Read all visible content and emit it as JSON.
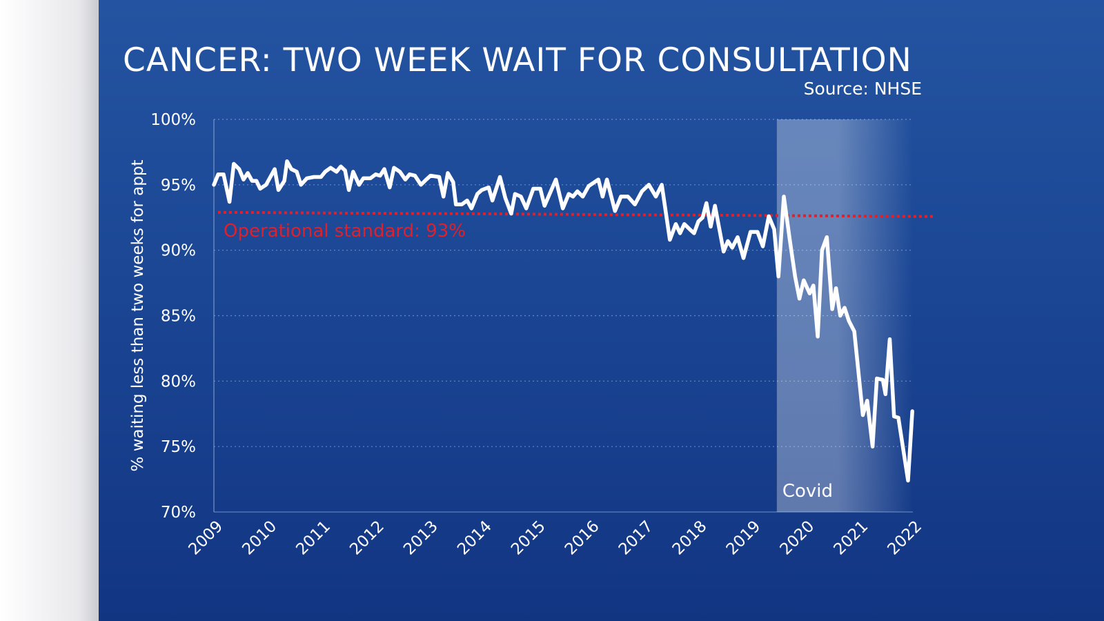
{
  "chart_data": {
    "type": "line",
    "title": "CANCER: TWO WEEK WAIT FOR CONSULTATION",
    "source": "Source: NHSE",
    "ylabel": "% waiting less than two weeks for appt",
    "xlabel": "",
    "xlim": [
      2009,
      2022
    ],
    "ylim": [
      70,
      100
    ],
    "x_ticks": [
      "2009",
      "2010",
      "2011",
      "2012",
      "2013",
      "2014",
      "2015",
      "2016",
      "2017",
      "2018",
      "2019",
      "2020",
      "2021",
      "2022"
    ],
    "y_ticks": [
      "70%",
      "75%",
      "80%",
      "85%",
      "90%",
      "95%",
      "100%"
    ],
    "y_tick_values": [
      70,
      75,
      80,
      85,
      90,
      95,
      100
    ],
    "grid": "horizontal dotted",
    "colors": {
      "line": "#ffffff",
      "standard": "#e0202a",
      "background": "#1a4593",
      "covid_band": "#ffffff"
    },
    "reference_line": {
      "label": "Operational standard: 93%",
      "value": 93
    },
    "shaded_region": {
      "label": "Covid",
      "from": 2019.47,
      "to": 2022
    },
    "series": [
      {
        "x": [
          2009.0,
          2009.08,
          2009.18,
          2009.29,
          2009.37,
          2009.47,
          2009.55,
          2009.63,
          2009.71,
          2009.79,
          2009.86,
          2009.97,
          2010.13,
          2010.2,
          2010.31,
          2010.36,
          2010.44,
          2010.54,
          2010.62,
          2010.73,
          2010.86,
          2010.99,
          2011.07,
          2011.17,
          2011.28,
          2011.36,
          2011.44,
          2011.51,
          2011.59,
          2011.7,
          2011.78,
          2011.91,
          2012.01,
          2012.09,
          2012.17,
          2012.27,
          2012.35,
          2012.46,
          2012.56,
          2012.64,
          2012.74,
          2012.85,
          2012.95,
          2013.03,
          2013.19,
          2013.27,
          2013.35,
          2013.45,
          2013.5,
          2013.61,
          2013.71,
          2013.79,
          2013.9,
          2013.98,
          2014.11,
          2014.18,
          2014.32,
          2014.42,
          2014.53,
          2014.6,
          2014.71,
          2014.81,
          2014.94,
          2015.07,
          2015.15,
          2015.36,
          2015.49,
          2015.6,
          2015.68,
          2015.76,
          2015.86,
          2015.97,
          2016.15,
          2016.23,
          2016.31,
          2016.46,
          2016.57,
          2016.7,
          2016.83,
          2016.96,
          2017.09,
          2017.22,
          2017.33,
          2017.48,
          2017.59,
          2017.67,
          2017.75,
          2017.85,
          2017.93,
          2018.01,
          2018.09,
          2018.16,
          2018.24,
          2018.32,
          2018.48,
          2018.56,
          2018.64,
          2018.74,
          2018.85,
          2018.98,
          2019.11,
          2019.21,
          2019.32,
          2019.42,
          2019.5,
          2019.6,
          2019.71,
          2019.81,
          2019.89,
          2019.97,
          2020.08,
          2020.15,
          2020.23,
          2020.31,
          2020.4,
          2020.5,
          2020.57,
          2020.65,
          2020.73,
          2020.81,
          2020.91,
          2021.07,
          2021.15,
          2021.25,
          2021.33,
          2021.44,
          2021.49,
          2021.57,
          2021.65,
          2021.73,
          2021.91,
          2021.99
        ],
        "y": [
          95.0,
          95.8,
          95.8,
          93.7,
          96.6,
          96.2,
          95.4,
          95.9,
          95.3,
          95.3,
          94.7,
          95.0,
          96.2,
          94.6,
          95.3,
          96.8,
          96.2,
          96.0,
          95.0,
          95.5,
          95.6,
          95.6,
          96.0,
          96.3,
          96.0,
          96.4,
          96.1,
          94.6,
          96.0,
          95.0,
          95.5,
          95.5,
          95.8,
          95.7,
          96.2,
          94.8,
          96.3,
          96.0,
          95.4,
          95.8,
          95.7,
          95.0,
          95.4,
          95.7,
          95.6,
          94.1,
          95.9,
          95.2,
          93.5,
          93.5,
          93.8,
          93.2,
          94.3,
          94.6,
          94.8,
          93.8,
          95.6,
          94.0,
          92.8,
          94.3,
          94.1,
          93.2,
          94.7,
          94.7,
          93.4,
          95.4,
          93.2,
          94.3,
          94.1,
          94.5,
          94.1,
          94.9,
          95.4,
          94.1,
          95.4,
          93.0,
          94.1,
          94.1,
          93.5,
          94.5,
          95.0,
          94.1,
          95.0,
          90.8,
          92.0,
          91.3,
          92.0,
          91.6,
          91.3,
          92.2,
          92.5,
          93.6,
          91.8,
          93.4,
          89.9,
          90.7,
          90.2,
          91.0,
          89.4,
          91.4,
          91.4,
          90.3,
          92.6,
          91.6,
          88.0,
          94.1,
          90.8,
          88.0,
          86.3,
          87.7,
          86.7,
          87.3,
          83.4,
          90.0,
          91.0,
          85.5,
          87.1,
          85.0,
          85.6,
          84.6,
          83.8,
          77.4,
          78.5,
          75.0,
          80.2,
          80.1,
          79.0,
          83.2,
          77.3,
          77.2,
          72.4,
          77.7
        ]
      }
    ]
  }
}
